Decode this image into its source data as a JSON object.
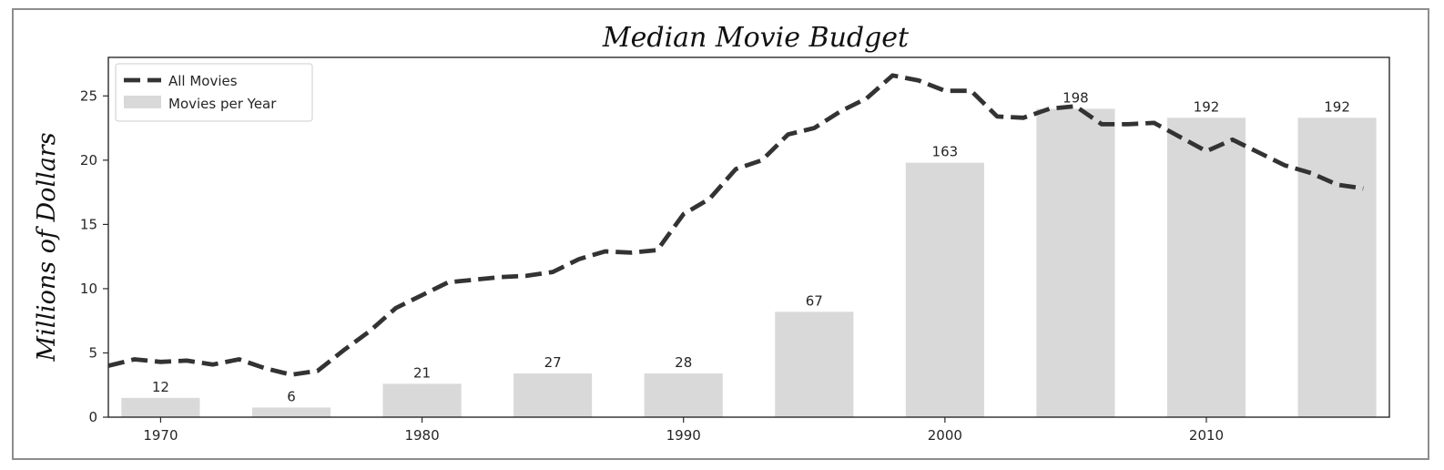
{
  "chart_data": {
    "type": "bar",
    "title": "Median Movie Budget",
    "xlabel": "",
    "ylabel": "Millions of Dollars",
    "xlim": [
      1968,
      2017
    ],
    "ylim": [
      0,
      28
    ],
    "x_ticks": [
      1970,
      1980,
      1990,
      2000,
      2010
    ],
    "y_ticks": [
      0,
      5,
      10,
      15,
      20,
      25
    ],
    "grid": false,
    "legend_placement": "top-left",
    "legend": [
      {
        "label": "All Movies",
        "style": "dashed-line",
        "color": "#333333"
      },
      {
        "label": "Movies per Year",
        "style": "bar",
        "color": "#d9d9d9"
      }
    ],
    "series": [
      {
        "name": "Movies per Year",
        "type": "bar",
        "color": "#d9d9d9",
        "x": [
          1970,
          1975,
          1980,
          1985,
          1990,
          1995,
          2000,
          2005,
          2010,
          2015
        ],
        "values": [
          1.5,
          0.75,
          2.6,
          3.4,
          3.4,
          8.2,
          19.8,
          24.0,
          23.3,
          23.3
        ],
        "labels": [
          "12",
          "6",
          "21",
          "27",
          "28",
          "67",
          "163",
          "198",
          "192",
          "192"
        ]
      },
      {
        "name": "All Movies",
        "type": "line",
        "color": "#333333",
        "x": [
          1968,
          1969,
          1970,
          1971,
          1972,
          1973,
          1974,
          1975,
          1976,
          1977,
          1978,
          1979,
          1980,
          1981,
          1982,
          1983,
          1984,
          1985,
          1986,
          1987,
          1988,
          1989,
          1990,
          1991,
          1992,
          1993,
          1994,
          1995,
          1996,
          1997,
          1998,
          1999,
          2000,
          2001,
          2002,
          2003,
          2004,
          2005,
          2006,
          2007,
          2008,
          2009,
          2010,
          2011,
          2012,
          2013,
          2014,
          2015,
          2016
        ],
        "values": [
          4.0,
          4.5,
          4.3,
          4.4,
          4.1,
          4.5,
          3.8,
          3.3,
          3.6,
          5.2,
          6.7,
          8.5,
          9.5,
          10.5,
          10.7,
          10.9,
          11.0,
          11.3,
          12.3,
          12.9,
          12.8,
          13.0,
          15.8,
          17.0,
          19.3,
          20.0,
          22.0,
          22.5,
          23.8,
          24.8,
          26.6,
          26.2,
          25.4,
          25.4,
          23.4,
          23.3,
          24.0,
          24.2,
          22.8,
          22.8,
          22.9,
          21.8,
          20.7,
          21.6,
          20.6,
          19.6,
          19.0,
          18.1,
          17.8
        ]
      }
    ]
  }
}
